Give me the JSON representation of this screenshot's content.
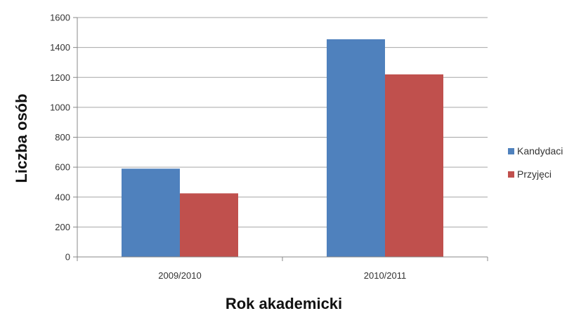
{
  "chart_data": {
    "type": "bar",
    "categories": [
      "2009/2010",
      "2010/2011"
    ],
    "series": [
      {
        "name": "Kandydaci",
        "values": [
          590,
          1455
        ],
        "color": "#4F81BD"
      },
      {
        "name": "Przyjęci",
        "values": [
          425,
          1220
        ],
        "color": "#C0504D"
      }
    ],
    "y_ticks": [
      "0",
      "200",
      "400",
      "600",
      "800",
      "1000",
      "1200",
      "1400",
      "1600"
    ],
    "ylim": [
      0,
      1600
    ],
    "xlabel": "Rok akademicki",
    "ylabel": "Liczba osób",
    "grid": true,
    "legend_position": "right"
  }
}
